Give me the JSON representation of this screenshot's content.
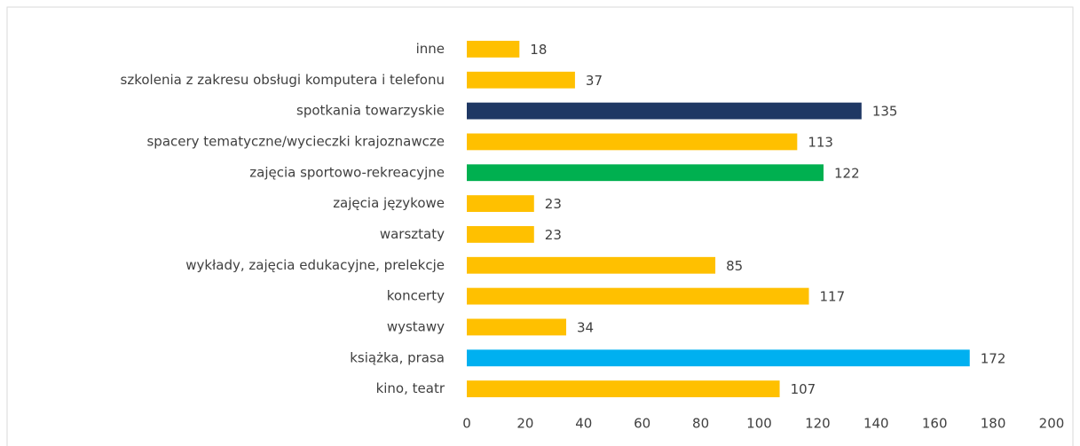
{
  "chart_data": {
    "type": "bar",
    "orientation": "horizontal",
    "categories": [
      "inne",
      "szkolenia z zakresu obsługi komputera i telefonu",
      "spotkania towarzyskie",
      "spacery tematyczne/wycieczki krajoznawcze",
      "zajęcia sportowo-rekreacyjne",
      "zajęcia językowe",
      "warsztaty",
      "wykłady, zajęcia edukacyjne, prelekcje",
      "koncerty",
      "wystawy",
      "książka, prasa",
      "kino, teatr"
    ],
    "values": [
      18,
      37,
      135,
      113,
      122,
      23,
      23,
      85,
      117,
      34,
      172,
      107
    ],
    "colors": [
      "#ffc000",
      "#ffc000",
      "#1f3864",
      "#ffc000",
      "#00b050",
      "#ffc000",
      "#ffc000",
      "#ffc000",
      "#ffc000",
      "#ffc000",
      "#00b0f0",
      "#ffc000"
    ],
    "xlim": [
      0,
      200
    ],
    "xticks": [
      0,
      20,
      40,
      60,
      80,
      100,
      120,
      140,
      160,
      180,
      200
    ],
    "grid": false
  }
}
